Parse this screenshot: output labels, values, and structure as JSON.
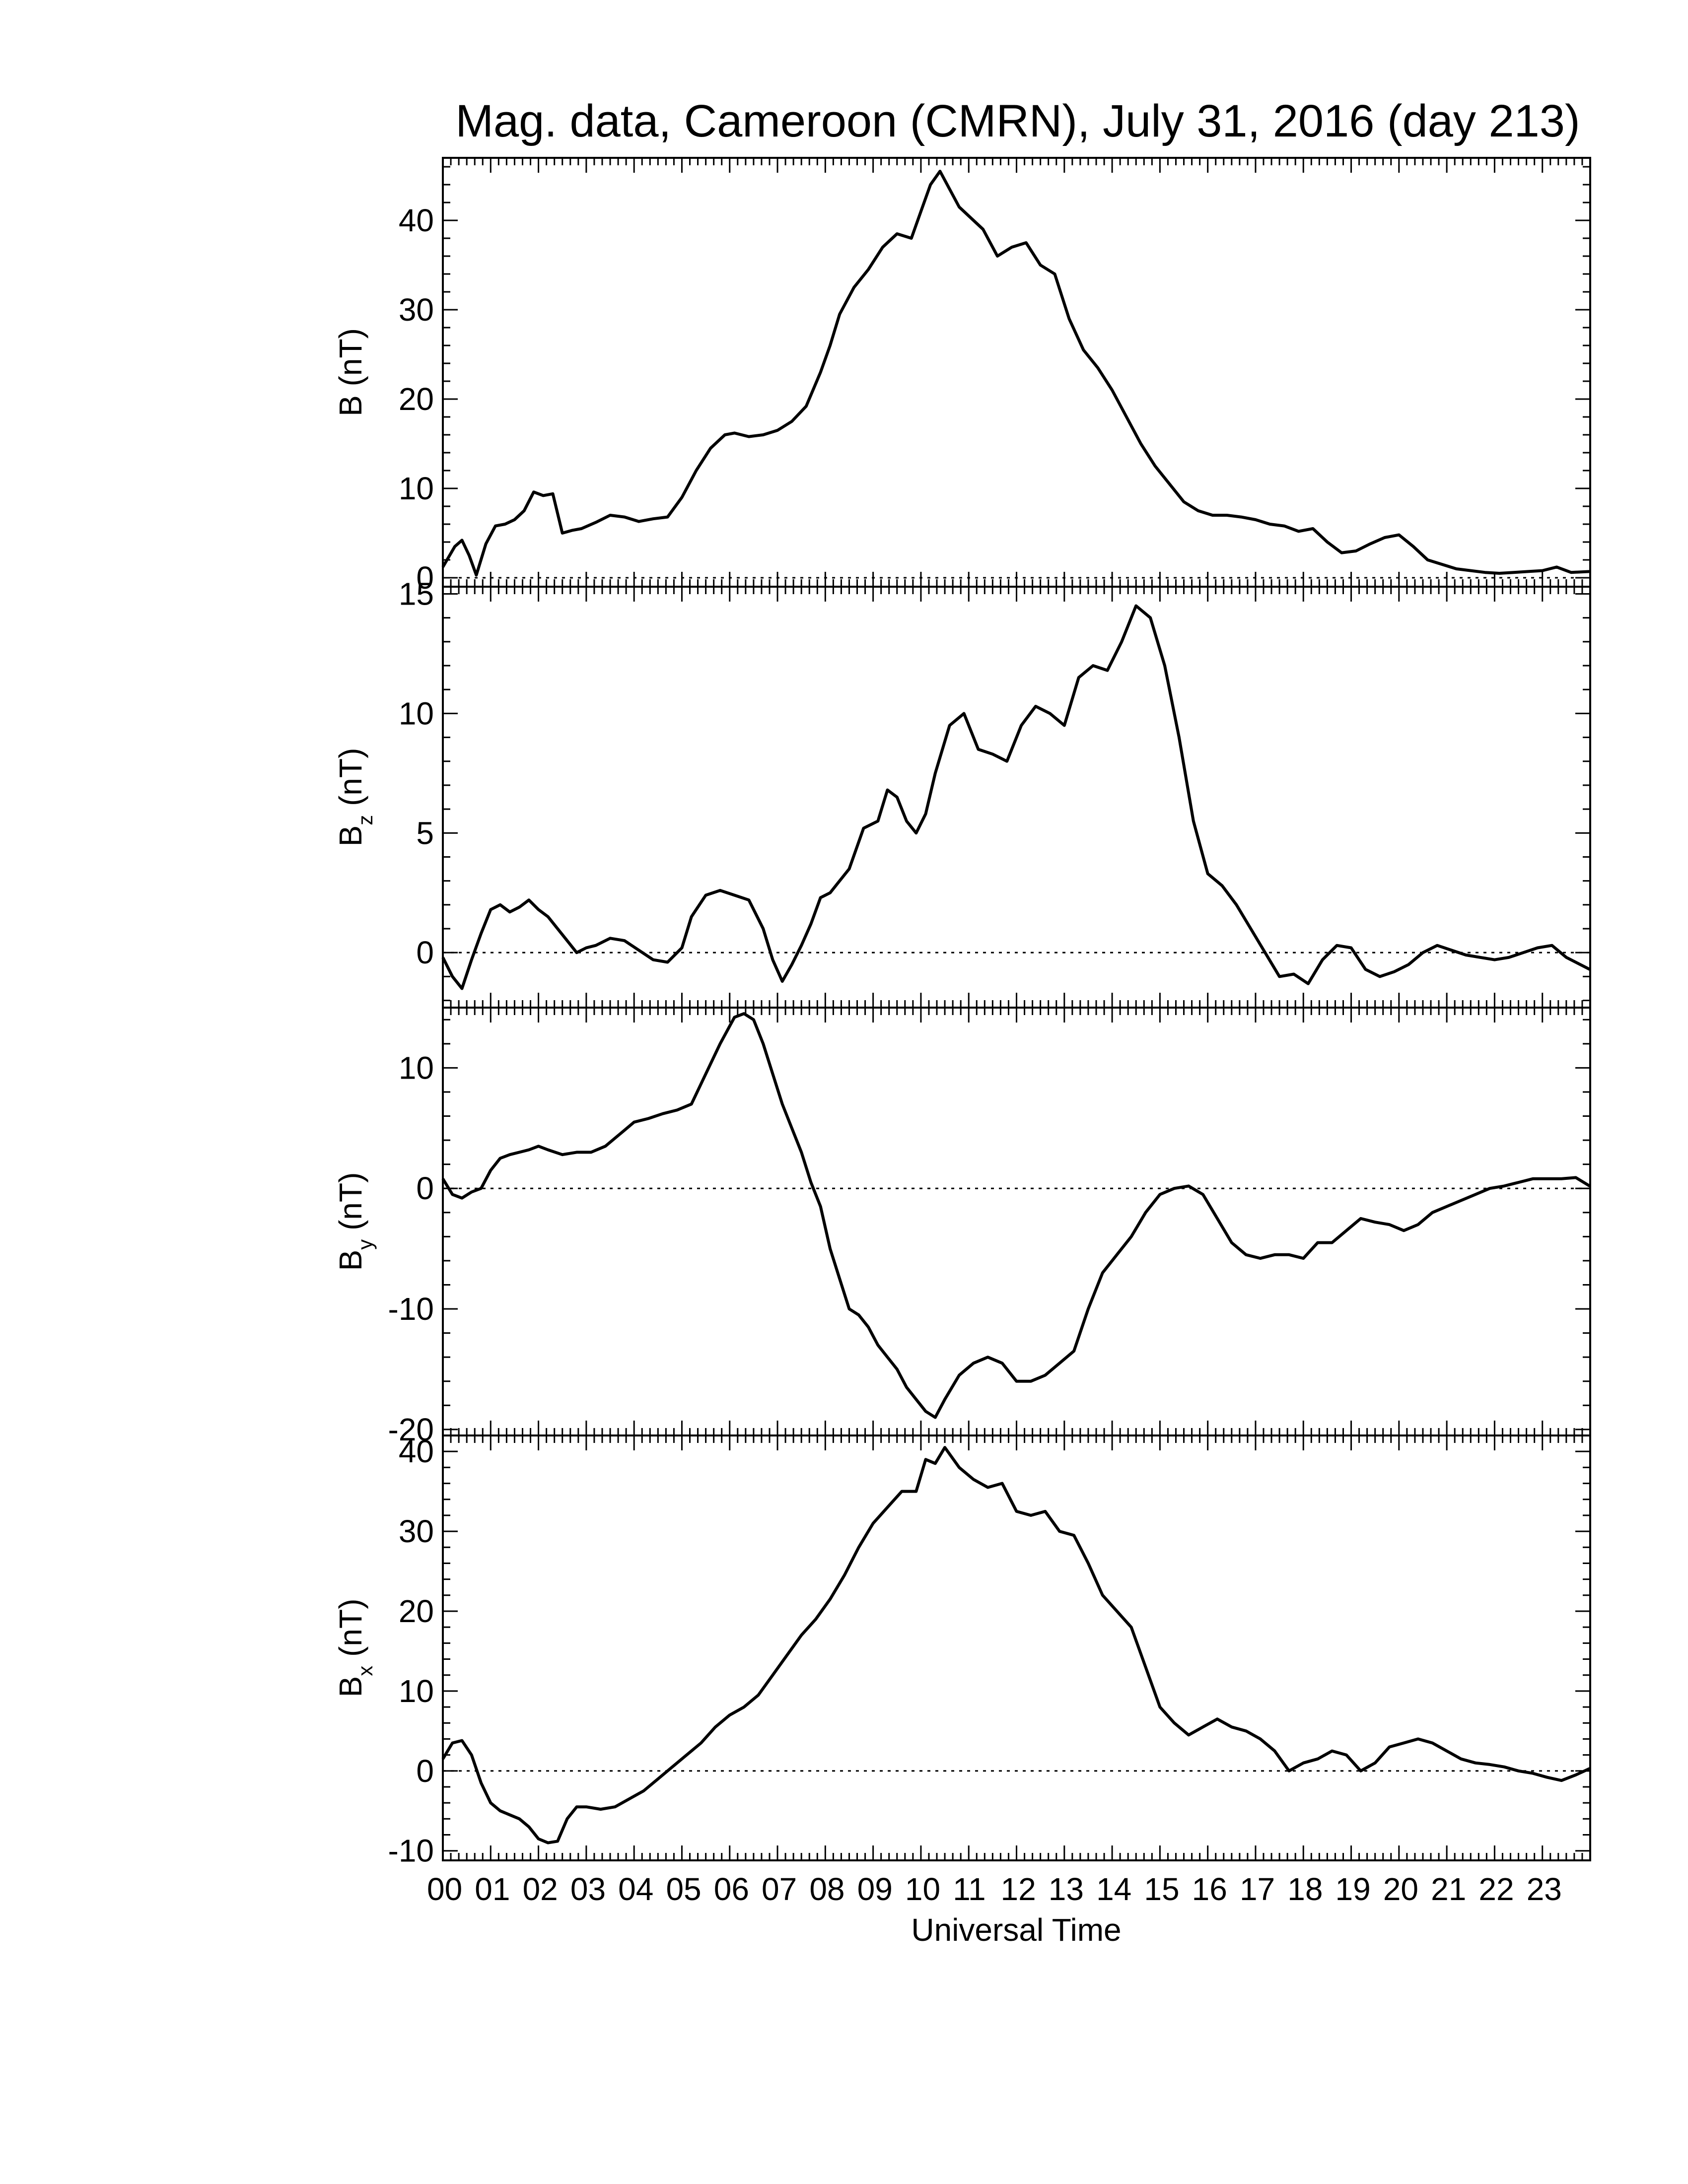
{
  "chart_data": {
    "type": "line",
    "title": "Mag. data, Cameroon (CMRN), July 31, 2016 (day 213)",
    "xlabel": "Universal Time",
    "x_tick_labels": [
      "00",
      "01",
      "02",
      "03",
      "04",
      "05",
      "06",
      "07",
      "08",
      "09",
      "10",
      "11",
      "12",
      "13",
      "14",
      "15",
      "16",
      "17",
      "18",
      "19",
      "20",
      "21",
      "22",
      "23"
    ],
    "xlim": [
      0,
      24
    ],
    "panels": [
      {
        "name": "B",
        "ylabel_main": "B",
        "ylabel_sub": "",
        "ylabel_unit": "(nT)",
        "ylim": [
          -1,
          47
        ],
        "yticks": [
          0,
          10,
          20,
          30,
          40
        ],
        "ytick_labels": [
          "0",
          "10",
          "20",
          "30",
          "40"
        ],
        "zero_line": true,
        "x": [
          0,
          0.25,
          0.4,
          0.55,
          0.7,
          0.9,
          1.1,
          1.3,
          1.5,
          1.7,
          1.9,
          2.1,
          2.3,
          2.5,
          2.7,
          2.9,
          3.2,
          3.5,
          3.8,
          4.1,
          4.4,
          4.7,
          5.0,
          5.3,
          5.6,
          5.9,
          6.1,
          6.4,
          6.7,
          7.0,
          7.3,
          7.6,
          7.9,
          8.1,
          8.3,
          8.6,
          8.9,
          9.2,
          9.5,
          9.8,
          10.0,
          10.2,
          10.4,
          10.6,
          10.8,
          11.0,
          11.3,
          11.6,
          11.9,
          12.2,
          12.5,
          12.8,
          13.1,
          13.4,
          13.7,
          14.0,
          14.3,
          14.6,
          14.9,
          15.2,
          15.5,
          15.8,
          16.1,
          16.4,
          16.7,
          17.0,
          17.3,
          17.6,
          17.9,
          18.2,
          18.5,
          18.8,
          19.1,
          19.4,
          19.7,
          20.0,
          20.3,
          20.6,
          20.9,
          21.2,
          21.5,
          21.8,
          22.1,
          22.4,
          22.7,
          23.0,
          23.3,
          23.6,
          23.99
        ],
        "y": [
          1.2,
          3.5,
          4.2,
          2.5,
          0.3,
          3.8,
          5.8,
          6.0,
          6.5,
          7.5,
          9.6,
          9.2,
          9.4,
          5.0,
          5.3,
          5.5,
          6.2,
          7.0,
          6.8,
          6.3,
          6.6,
          6.8,
          9.0,
          12.0,
          14.5,
          16.0,
          16.2,
          15.8,
          16.0,
          16.5,
          17.5,
          19.2,
          23.0,
          26.0,
          29.5,
          32.5,
          34.5,
          37.0,
          38.5,
          38.0,
          41.0,
          44.0,
          45.5,
          43.5,
          41.5,
          40.5,
          39.0,
          36.0,
          37.0,
          37.5,
          35.0,
          34.0,
          29.0,
          25.5,
          23.5,
          21.0,
          18.0,
          15.0,
          12.5,
          10.5,
          8.5,
          7.5,
          7.0,
          7.0,
          6.8,
          6.5,
          6.0,
          5.8,
          5.2,
          5.5,
          4.0,
          2.8,
          3.0,
          3.8,
          4.5,
          4.8,
          3.5,
          2.0,
          1.5,
          1.0,
          0.8,
          0.6,
          0.5,
          0.6,
          0.7,
          0.8,
          1.2,
          0.6,
          0.7
        ]
      },
      {
        "name": "Bz",
        "ylabel_main": "B",
        "ylabel_sub": "z",
        "ylabel_unit": "(nT)",
        "ylim": [
          -2.3,
          15.3
        ],
        "yticks": [
          0,
          5,
          10,
          15
        ],
        "ytick_labels": [
          "0",
          "5",
          "10",
          "15"
        ],
        "zero_line": true,
        "x": [
          0,
          0.2,
          0.4,
          0.6,
          0.8,
          1.0,
          1.2,
          1.4,
          1.6,
          1.8,
          2.0,
          2.2,
          2.4,
          2.6,
          2.8,
          3.0,
          3.2,
          3.5,
          3.8,
          4.1,
          4.4,
          4.7,
          5.0,
          5.2,
          5.5,
          5.8,
          6.1,
          6.4,
          6.7,
          6.9,
          7.1,
          7.3,
          7.5,
          7.7,
          7.9,
          8.1,
          8.3,
          8.5,
          8.8,
          9.1,
          9.3,
          9.5,
          9.7,
          9.9,
          10.1,
          10.3,
          10.6,
          10.9,
          11.2,
          11.5,
          11.8,
          12.1,
          12.4,
          12.7,
          13.0,
          13.3,
          13.6,
          13.9,
          14.2,
          14.5,
          14.8,
          15.1,
          15.4,
          15.7,
          16.0,
          16.3,
          16.6,
          16.9,
          17.2,
          17.5,
          17.8,
          18.1,
          18.4,
          18.7,
          19.0,
          19.3,
          19.6,
          19.9,
          20.2,
          20.5,
          20.8,
          21.1,
          21.4,
          21.7,
          22.0,
          22.3,
          22.6,
          22.9,
          23.2,
          23.5,
          23.99
        ],
        "y": [
          -0.2,
          -1.0,
          -1.5,
          -0.3,
          0.8,
          1.8,
          2.0,
          1.7,
          1.9,
          2.2,
          1.8,
          1.5,
          1.0,
          0.5,
          0.0,
          0.2,
          0.3,
          0.6,
          0.5,
          0.1,
          -0.3,
          -0.4,
          0.2,
          1.5,
          2.4,
          2.6,
          2.4,
          2.2,
          1.0,
          -0.3,
          -1.2,
          -0.5,
          0.3,
          1.2,
          2.3,
          2.5,
          3.0,
          3.5,
          5.2,
          5.5,
          6.8,
          6.5,
          5.5,
          5.0,
          5.8,
          7.5,
          9.5,
          10.0,
          8.5,
          8.3,
          8.0,
          9.5,
          10.3,
          10.0,
          9.5,
          11.5,
          12.0,
          11.8,
          13.0,
          14.5,
          14.0,
          12.0,
          9.0,
          5.5,
          3.3,
          2.8,
          2.0,
          1.0,
          0.0,
          -1.0,
          -0.9,
          -1.3,
          -0.3,
          0.3,
          0.2,
          -0.7,
          -1.0,
          -0.8,
          -0.5,
          0.0,
          0.3,
          0.1,
          -0.1,
          -0.2,
          -0.3,
          -0.2,
          0.0,
          0.2,
          0.3,
          -0.2,
          -0.7
        ]
      },
      {
        "name": "By",
        "ylabel_main": "B",
        "ylabel_sub": "y",
        "ylabel_unit": "(nT)",
        "ylim": [
          -20.5,
          15.0
        ],
        "yticks": [
          -20,
          -10,
          0,
          10
        ],
        "ytick_labels": [
          "-20",
          "-10",
          "0",
          "10"
        ],
        "zero_line": true,
        "x": [
          0,
          0.2,
          0.4,
          0.6,
          0.8,
          1.0,
          1.2,
          1.4,
          1.6,
          1.8,
          2.0,
          2.2,
          2.5,
          2.8,
          3.1,
          3.4,
          3.7,
          4.0,
          4.3,
          4.6,
          4.9,
          5.2,
          5.5,
          5.8,
          6.1,
          6.3,
          6.5,
          6.7,
          6.9,
          7.1,
          7.3,
          7.5,
          7.7,
          7.9,
          8.1,
          8.3,
          8.5,
          8.7,
          8.9,
          9.1,
          9.3,
          9.5,
          9.7,
          9.9,
          10.1,
          10.3,
          10.5,
          10.8,
          11.1,
          11.4,
          11.7,
          12.0,
          12.3,
          12.6,
          12.9,
          13.2,
          13.5,
          13.8,
          14.1,
          14.4,
          14.7,
          15.0,
          15.3,
          15.6,
          15.9,
          16.2,
          16.5,
          16.8,
          17.1,
          17.4,
          17.7,
          18.0,
          18.3,
          18.6,
          18.9,
          19.2,
          19.5,
          19.8,
          20.1,
          20.4,
          20.7,
          21.0,
          21.3,
          21.6,
          21.9,
          22.2,
          22.5,
          22.8,
          23.1,
          23.4,
          23.7,
          23.99
        ],
        "y": [
          0.8,
          -0.5,
          -0.8,
          -0.3,
          0.0,
          1.5,
          2.5,
          2.8,
          3.0,
          3.2,
          3.5,
          3.2,
          2.8,
          3.0,
          3.0,
          3.5,
          4.5,
          5.5,
          5.8,
          6.2,
          6.5,
          7.0,
          9.5,
          12.0,
          14.2,
          14.5,
          14.0,
          12.0,
          9.5,
          7.0,
          5.0,
          3.0,
          0.5,
          -1.5,
          -5.0,
          -7.5,
          -10.0,
          -10.5,
          -11.5,
          -13.0,
          -14.0,
          -15.0,
          -16.5,
          -17.5,
          -18.5,
          -19.0,
          -17.5,
          -15.5,
          -14.5,
          -14.0,
          -14.5,
          -16.0,
          -16.0,
          -15.5,
          -14.5,
          -13.5,
          -10.0,
          -7.0,
          -5.5,
          -4.0,
          -2.0,
          -0.5,
          0.0,
          0.2,
          -0.5,
          -2.5,
          -4.5,
          -5.5,
          -5.8,
          -5.5,
          -5.5,
          -5.8,
          -4.5,
          -4.5,
          -3.5,
          -2.5,
          -2.8,
          -3.0,
          -3.5,
          -3.0,
          -2.0,
          -1.5,
          -1.0,
          -0.5,
          0.0,
          0.2,
          0.5,
          0.8,
          0.8,
          0.8,
          0.9,
          0.2
        ]
      },
      {
        "name": "Bx",
        "ylabel_main": "B",
        "ylabel_sub": "x",
        "ylabel_unit": "(nT)",
        "ylim": [
          -11.2,
          42.0
        ],
        "yticks": [
          -10,
          0,
          10,
          20,
          30,
          40
        ],
        "ytick_labels": [
          "-10",
          "0",
          "10",
          "20",
          "30",
          "40"
        ],
        "zero_line": true,
        "x": [
          0,
          0.2,
          0.4,
          0.6,
          0.8,
          1.0,
          1.2,
          1.4,
          1.6,
          1.8,
          2.0,
          2.2,
          2.4,
          2.6,
          2.8,
          3.0,
          3.3,
          3.6,
          3.9,
          4.2,
          4.5,
          4.8,
          5.1,
          5.4,
          5.7,
          6.0,
          6.3,
          6.6,
          6.9,
          7.2,
          7.5,
          7.8,
          8.1,
          8.4,
          8.7,
          9.0,
          9.3,
          9.6,
          9.9,
          10.1,
          10.3,
          10.5,
          10.8,
          11.1,
          11.4,
          11.7,
          12.0,
          12.3,
          12.6,
          12.9,
          13.2,
          13.5,
          13.8,
          14.1,
          14.4,
          14.7,
          15.0,
          15.3,
          15.6,
          15.9,
          16.2,
          16.5,
          16.8,
          17.1,
          17.4,
          17.7,
          18.0,
          18.3,
          18.6,
          18.9,
          19.2,
          19.5,
          19.8,
          20.1,
          20.4,
          20.7,
          21.0,
          21.3,
          21.6,
          21.9,
          22.2,
          22.5,
          22.8,
          23.1,
          23.4,
          23.7,
          23.99
        ],
        "y": [
          1.5,
          3.5,
          3.8,
          2.0,
          -1.5,
          -4.0,
          -5.0,
          -5.5,
          -6.0,
          -7.0,
          -8.5,
          -9.0,
          -8.8,
          -6.0,
          -4.5,
          -4.5,
          -4.8,
          -4.5,
          -3.5,
          -2.5,
          -1.0,
          0.5,
          2.0,
          3.5,
          5.5,
          7.0,
          8.0,
          9.5,
          12.0,
          14.5,
          17.0,
          19.0,
          21.5,
          24.5,
          28.0,
          31.0,
          33.0,
          35.0,
          35.0,
          39.0,
          38.5,
          40.5,
          38.0,
          36.5,
          35.5,
          36.0,
          32.5,
          32.0,
          32.5,
          30.0,
          29.5,
          26.0,
          22.0,
          20.0,
          18.0,
          13.0,
          8.0,
          6.0,
          4.5,
          5.5,
          6.5,
          5.5,
          5.0,
          4.0,
          2.5,
          0.0,
          1.0,
          1.5,
          2.5,
          2.0,
          0.0,
          1.0,
          3.0,
          3.5,
          4.0,
          3.5,
          2.5,
          1.5,
          1.0,
          0.8,
          0.5,
          0.0,
          -0.3,
          -0.8,
          -1.2,
          -0.5,
          0.3
        ]
      }
    ]
  }
}
